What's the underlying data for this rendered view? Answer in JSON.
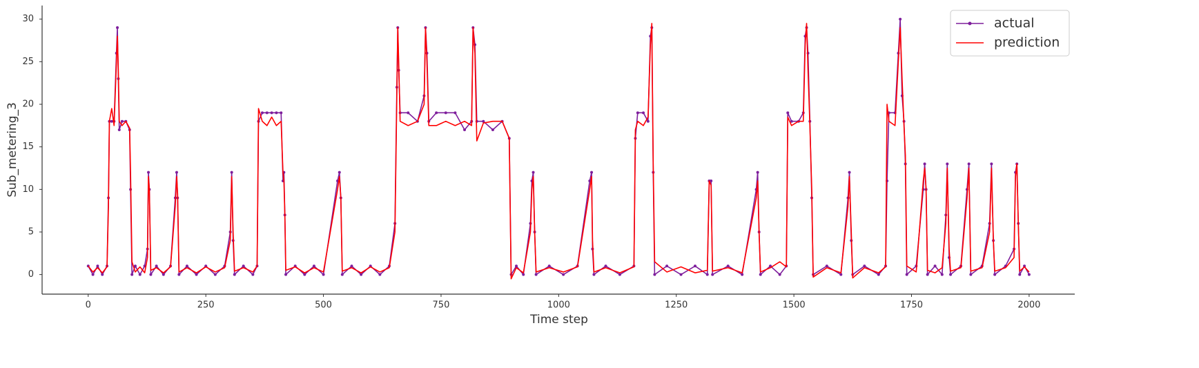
{
  "chart_data": {
    "type": "line",
    "x_label": "Time step",
    "y_label": "Sub_metering_3",
    "x": [
      0,
      10,
      20,
      30,
      40,
      43,
      45,
      50,
      55,
      60,
      62,
      64,
      66,
      72,
      80,
      88,
      90,
      93,
      100,
      110,
      120,
      126,
      128,
      130,
      133,
      145,
      160,
      175,
      185,
      188,
      190,
      193,
      210,
      230,
      250,
      270,
      290,
      302,
      305,
      308,
      311,
      330,
      350,
      359,
      362,
      370,
      380,
      390,
      400,
      410,
      414,
      416,
      418,
      420,
      440,
      460,
      480,
      500,
      530,
      534,
      537,
      540,
      560,
      580,
      600,
      620,
      640,
      652,
      656,
      658,
      660,
      663,
      680,
      700,
      714,
      717,
      720,
      724,
      740,
      760,
      780,
      800,
      815,
      818,
      822,
      826,
      840,
      860,
      880,
      895,
      899,
      910,
      925,
      940,
      943,
      946,
      949,
      952,
      980,
      1010,
      1040,
      1066,
      1070,
      1072,
      1075,
      1100,
      1130,
      1160,
      1163,
      1168,
      1180,
      1190,
      1195,
      1198,
      1201,
      1204,
      1230,
      1260,
      1290,
      1316,
      1320,
      1324,
      1327,
      1360,
      1390,
      1420,
      1423,
      1426,
      1429,
      1450,
      1470,
      1484,
      1487,
      1495,
      1510,
      1520,
      1524,
      1527,
      1530,
      1534,
      1538,
      1541,
      1570,
      1600,
      1615,
      1618,
      1622,
      1625,
      1650,
      1680,
      1695,
      1698,
      1702,
      1715,
      1722,
      1726,
      1730,
      1734,
      1737,
      1740,
      1760,
      1775,
      1778,
      1781,
      1784,
      1800,
      1815,
      1823,
      1826,
      1830,
      1833,
      1855,
      1868,
      1872,
      1876,
      1900,
      1916,
      1920,
      1924,
      1927,
      1950,
      1968,
      1971,
      1974,
      1977,
      1980,
      1990,
      2000
    ],
    "series": [
      {
        "name": "actual",
        "color": "#7e1e9c",
        "marker": true,
        "values": [
          1,
          0,
          1,
          0,
          1,
          9,
          18,
          18,
          18,
          26,
          29,
          23,
          17,
          18,
          18,
          17,
          10,
          0,
          1,
          0,
          1,
          3,
          12,
          10,
          0,
          1,
          0,
          1,
          9,
          12,
          9,
          0,
          1,
          0,
          1,
          0,
          1,
          5,
          12,
          4,
          0,
          1,
          0,
          1,
          18,
          19,
          19,
          19,
          19,
          19,
          11,
          12,
          7,
          0,
          1,
          0,
          1,
          0,
          11,
          12,
          9,
          0,
          1,
          0,
          1,
          0,
          1,
          6,
          22,
          29,
          24,
          19,
          19,
          18,
          21,
          29,
          26,
          18,
          19,
          19,
          19,
          17,
          18,
          29,
          27,
          18,
          18,
          17,
          18,
          16,
          0,
          1,
          0,
          6,
          11,
          12,
          5,
          0,
          1,
          0,
          1,
          11,
          12,
          3,
          0,
          1,
          0,
          1,
          16,
          19,
          19,
          18,
          28,
          29,
          12,
          0,
          1,
          0,
          1,
          0,
          11,
          11,
          0,
          1,
          0,
          10,
          12,
          5,
          0,
          1,
          0,
          1,
          19,
          18,
          18,
          19,
          28,
          29,
          26,
          18,
          9,
          0,
          1,
          0,
          9,
          12,
          4,
          0,
          1,
          0,
          1,
          11,
          19,
          19,
          26,
          30,
          21,
          18,
          13,
          0,
          1,
          10,
          13,
          10,
          0,
          1,
          0,
          7,
          13,
          2,
          0,
          1,
          10,
          13,
          0,
          1,
          6,
          13,
          4,
          0,
          1,
          3,
          12,
          13,
          6,
          0,
          1,
          0
        ]
      },
      {
        "name": "prediction",
        "color": "#ff0000",
        "marker": false,
        "values": [
          1,
          0.3,
          0.8,
          0.2,
          0.9,
          8,
          18,
          19.5,
          17.5,
          25,
          28,
          24,
          18,
          17.5,
          18,
          17.2,
          12,
          1.5,
          0.3,
          0.9,
          0.2,
          2,
          11.5,
          10,
          0.5,
          0.8,
          0.2,
          0.9,
          8,
          11.5,
          9.5,
          0.3,
          0.8,
          0.2,
          0.9,
          0.3,
          0.8,
          4,
          11.5,
          5,
          0.4,
          0.8,
          0.3,
          1,
          19.5,
          18,
          17.5,
          18.5,
          17.5,
          18,
          12,
          11,
          7,
          0.5,
          0.9,
          0.2,
          0.8,
          0.3,
          10,
          11.5,
          9,
          0.4,
          0.8,
          0.2,
          0.9,
          0.3,
          0.8,
          5,
          21,
          29,
          25,
          18,
          17.5,
          18,
          20,
          29,
          25,
          17.5,
          17.5,
          18,
          17.5,
          18,
          17.5,
          29,
          26,
          15.7,
          17.8,
          18,
          18,
          16,
          -0.5,
          0.8,
          0.2,
          5,
          10,
          11.5,
          5,
          0.3,
          0.8,
          0.3,
          0.9,
          10,
          11.5,
          4,
          0.3,
          0.8,
          0.2,
          0.9,
          17,
          18,
          17.5,
          18.5,
          27,
          29.5,
          13,
          1.5,
          0.3,
          0.9,
          0.2,
          0.5,
          11,
          10.5,
          0.4,
          0.8,
          0.2,
          9,
          11,
          5,
          0.3,
          0.8,
          1.5,
          0.9,
          18.5,
          17.5,
          18,
          18,
          27,
          29.5,
          24,
          17.5,
          10,
          -0.3,
          0.8,
          0.2,
          8,
          11.5,
          5,
          -0.4,
          0.8,
          0.2,
          0.9,
          20,
          18,
          17.5,
          25,
          29,
          23,
          17.5,
          14,
          1,
          0.3,
          11,
          12.5,
          10,
          0.5,
          0.2,
          0.8,
          6,
          12.5,
          3,
          0.4,
          0.8,
          9,
          12.5,
          0.4,
          0.8,
          5,
          12.5,
          4,
          0.4,
          0.8,
          2,
          11.5,
          13,
          6,
          0.4,
          0.9,
          0.3
        ]
      }
    ],
    "xlim": [
      -98,
      2097
    ],
    "ylim": [
      -2.3,
      31.6
    ],
    "xticks": [
      0,
      250,
      500,
      750,
      1000,
      1250,
      1500,
      1750,
      2000
    ],
    "yticks": [
      0,
      5,
      10,
      15,
      20,
      25,
      30
    ],
    "legend": "upper right",
    "grid": false
  }
}
